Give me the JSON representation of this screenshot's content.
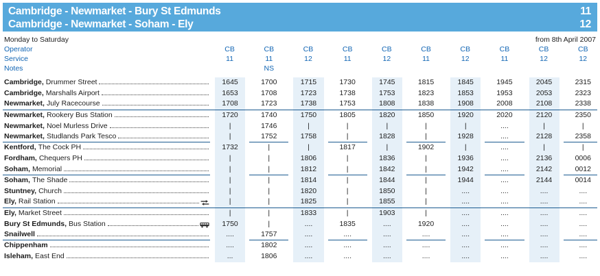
{
  "colors": {
    "banner": "#57a9dc",
    "blue_text": "#1165b4",
    "band": "#e6f0f8",
    "rule": "#19598f",
    "ink": "#1c1c1c"
  },
  "banner": {
    "routes": [
      {
        "title": "Cambridge - Newmarket - Bury St Edmunds",
        "number": "11"
      },
      {
        "title": "Cambridge - Newmarket - Soham - Ely",
        "number": "12"
      }
    ]
  },
  "subheader": {
    "days": "Monday to Saturday",
    "valid_from": "from 8th April 2007"
  },
  "table": {
    "head_rows": [
      {
        "label": "Operator",
        "values": [
          "CB",
          "CB",
          "CB",
          "CB",
          "CB",
          "CB",
          "CB",
          "CB",
          "CB",
          "CB"
        ]
      },
      {
        "label": "Service",
        "values": [
          "11",
          "11",
          "12",
          "11",
          "12",
          "11",
          "12",
          "11",
          "12",
          "12"
        ]
      },
      {
        "label": "Notes",
        "values": [
          "",
          "NS",
          "",
          "",
          "",
          "",
          "",
          "",
          "",
          ""
        ]
      }
    ],
    "stops": [
      {
        "place": "Cambridge,",
        "name": "Drummer Street",
        "icon": "",
        "rule_after": false,
        "times": [
          "1645",
          "1700",
          "1715",
          "1730",
          "1745",
          "1815",
          "1845",
          "1945",
          "2045",
          "2315"
        ]
      },
      {
        "place": "Cambridge,",
        "name": "Marshalls Airport",
        "icon": "",
        "rule_after": false,
        "times": [
          "1653",
          "1708",
          "1723",
          "1738",
          "1753",
          "1823",
          "1853",
          "1953",
          "2053",
          "2323"
        ]
      },
      {
        "place": "Newmarket,",
        "name": "July Racecourse",
        "icon": "",
        "rule_after": true,
        "times": [
          "1708",
          "1723",
          "1738",
          "1753",
          "1808",
          "1838",
          "1908",
          "2008",
          "2108",
          "2338"
        ]
      },
      {
        "place": "Newmarket,",
        "name": "Rookery Bus Station",
        "icon": "",
        "rule_after": false,
        "times": [
          "1720",
          "1740",
          "1750",
          "1805",
          "1820",
          "1850",
          "1920",
          "2020",
          "2120",
          "2350"
        ]
      },
      {
        "place": "Newmarket,",
        "name": "Noel Murless Drive",
        "icon": "",
        "rule_after": false,
        "times": [
          "|",
          "1746",
          "|",
          "|",
          "|",
          "|",
          "|",
          "....",
          "|",
          "|"
        ]
      },
      {
        "place": "Newmarket,",
        "name": "Studlands Park Tesco",
        "icon": "",
        "rule_after": true,
        "times": [
          "|",
          "1752",
          "1758",
          "|",
          "1828",
          "|",
          "1928",
          "....",
          "2128",
          "2358"
        ]
      },
      {
        "place": "Kentford,",
        "name": "The Cock PH",
        "icon": "",
        "rule_after": false,
        "times": [
          "1732",
          "|",
          "|",
          "1817",
          "|",
          "1902",
          "|",
          "....",
          "|",
          "|"
        ]
      },
      {
        "place": "Fordham,",
        "name": "Chequers PH",
        "icon": "",
        "rule_after": false,
        "times": [
          "|",
          "|",
          "1806",
          "|",
          "1836",
          "|",
          "1936",
          "....",
          "2136",
          "0006"
        ]
      },
      {
        "place": "Soham,",
        "name": "Memorial",
        "icon": "",
        "rule_after": true,
        "times": [
          "|",
          "|",
          "1812",
          "|",
          "1842",
          "|",
          "1942",
          "....",
          "2142",
          "0012"
        ]
      },
      {
        "place": "Soham,",
        "name": "The Shade",
        "icon": "",
        "rule_after": false,
        "times": [
          "|",
          "|",
          "1814",
          "|",
          "1844",
          "|",
          "1944",
          "....",
          "2144",
          "0014"
        ]
      },
      {
        "place": "Stuntney,",
        "name": "Church",
        "icon": "",
        "rule_after": false,
        "times": [
          "|",
          "|",
          "1820",
          "|",
          "1850",
          "|",
          "....",
          "....",
          "....",
          "...."
        ]
      },
      {
        "place": "Ely,",
        "name": "Rail Station",
        "icon": "rail",
        "rule_after": true,
        "times": [
          "|",
          "|",
          "1825",
          "|",
          "1855",
          "|",
          "....",
          "....",
          "....",
          "...."
        ]
      },
      {
        "place": "Ely,",
        "name": "Market Street",
        "icon": "",
        "rule_after": false,
        "times": [
          "|",
          "|",
          "1833",
          "|",
          "1903",
          "|",
          "....",
          "....",
          "....",
          "...."
        ]
      },
      {
        "place": "Bury St Edmunds,",
        "name": "Bus Station",
        "icon": "bus",
        "rule_after": false,
        "times": [
          "1750",
          "|",
          "....",
          "1835",
          "....",
          "1920",
          "....",
          "....",
          "....",
          "...."
        ]
      },
      {
        "place": "Snailwell",
        "name": "",
        "icon": "",
        "rule_after": true,
        "times": [
          "....",
          "1757",
          "....",
          "....",
          "....",
          "....",
          "....",
          "....",
          "....",
          "...."
        ]
      },
      {
        "place": "Chippenham",
        "name": "",
        "icon": "",
        "rule_after": false,
        "times": [
          "....",
          "1802",
          "....",
          "....",
          "....",
          "....",
          "....",
          "....",
          "....",
          "...."
        ]
      },
      {
        "place": "Isleham,",
        "name": "East End",
        "icon": "",
        "rule_after": false,
        "times": [
          "...",
          "1806",
          "....",
          "....",
          "....",
          "....",
          "....",
          "....",
          "....",
          "...."
        ]
      }
    ]
  }
}
